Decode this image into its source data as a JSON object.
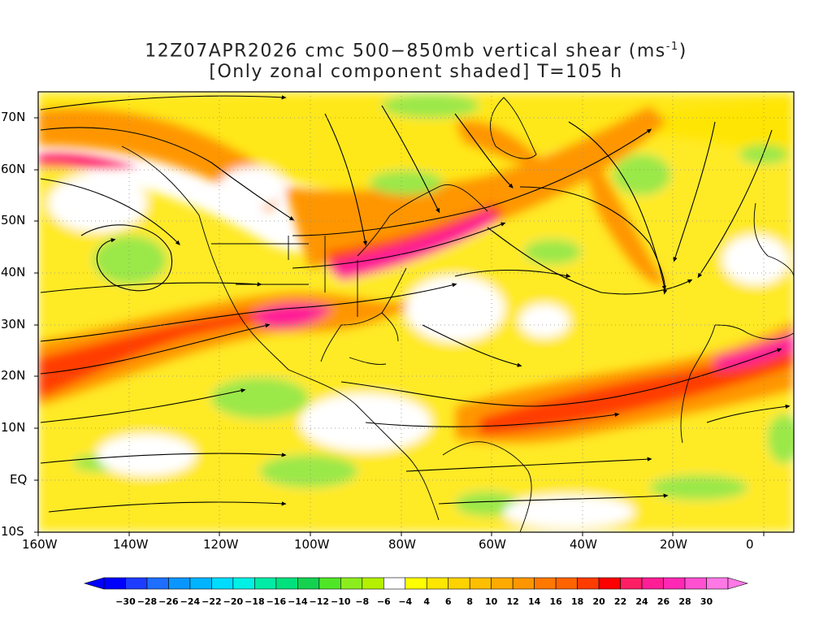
{
  "title": {
    "line1_prefix": "12Z07APR2026 cmc 500−850mb vertical shear (ms",
    "line1_sup": "-1",
    "line1_suffix": ")",
    "line2": "[Only zonal component shaded] T=105 h"
  },
  "axes": {
    "lat_labels": [
      "70N",
      "60N",
      "50N",
      "40N",
      "30N",
      "20N",
      "10N",
      "EQ",
      "10S"
    ],
    "lon_labels": [
      "160W",
      "140W",
      "120W",
      "100W",
      "80W",
      "60W",
      "40W",
      "20W",
      "0"
    ],
    "lat_range": [
      -10,
      75
    ],
    "lon_range": [
      -160,
      10
    ]
  },
  "colorbar": {
    "labels": [
      "-30",
      "-28",
      "-26",
      "-24",
      "-22",
      "-20",
      "-18",
      "-16",
      "-14",
      "-12",
      "-10",
      "-8",
      "-6",
      "-4",
      "4",
      "6",
      "8",
      "10",
      "12",
      "14",
      "16",
      "18",
      "20",
      "22",
      "24",
      "26",
      "28",
      "30"
    ],
    "colors": [
      "#0000ff",
      "#1e3cff",
      "#1e6eff",
      "#0a96ff",
      "#00b4ff",
      "#00dcff",
      "#00f0e6",
      "#00eba5",
      "#00e17d",
      "#14d250",
      "#50e628",
      "#8ced1e",
      "#b4f000",
      "#ffffff",
      "#ffff00",
      "#ffe600",
      "#ffd200",
      "#ffbe00",
      "#ffaa00",
      "#ff9600",
      "#ff7800",
      "#ff6400",
      "#ff3c00",
      "#ff0000",
      "#ff1e64",
      "#ff1e96",
      "#ff28b4",
      "#ff50d2",
      "#ff78e6"
    ]
  },
  "colors": {
    "green": "#9be84a",
    "yellow": "#ffe600",
    "orange": "#ffaa00",
    "red": "#ff5a00",
    "magenta": "#ff1e96"
  }
}
